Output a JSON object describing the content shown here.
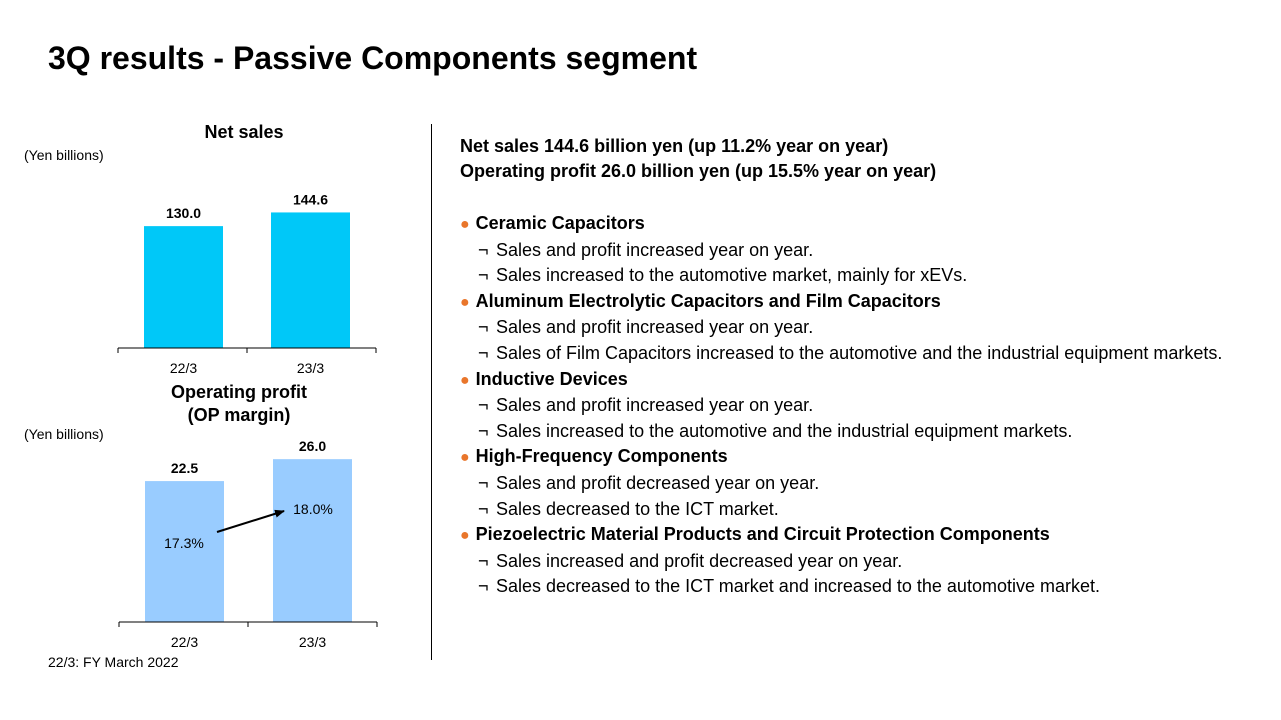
{
  "page": {
    "title": "3Q results - Passive Components segment"
  },
  "chart_data": [
    {
      "type": "bar",
      "title": "Net sales",
      "ylabel": "(Yen billions)",
      "categories": [
        "22/3",
        "23/3"
      ],
      "values": [
        130.0,
        144.6
      ],
      "value_labels": [
        "130.0",
        "144.6"
      ],
      "color": "#00c8f8",
      "ylim": [
        0,
        160
      ]
    },
    {
      "type": "bar",
      "title": "Operating profit",
      "subtitle": "(OP margin)",
      "ylabel": "(Yen billions)",
      "categories": [
        "22/3",
        "23/3"
      ],
      "values": [
        22.5,
        26.0
      ],
      "value_labels": [
        "22.5",
        "26.0"
      ],
      "op_margin_labels": [
        "17.3%",
        "18.0%"
      ],
      "op_margin": [
        17.3,
        18.0
      ],
      "color": "#99ccff",
      "ylim": [
        0,
        28.9
      ]
    }
  ],
  "footnote": "22/3: FY March 2022",
  "summary": [
    "Net sales  144.6 billion yen (up 11.2% year on year)",
    "Operating profit 26.0 billion yen (up 15.5% year on year)"
  ],
  "bullet_symbol": "●",
  "sub_symbol": "¬",
  "segments": [
    {
      "title": "Ceramic Capacitors",
      "items": [
        "Sales and profit increased year on year.",
        "Sales increased to the automotive market, mainly for xEVs."
      ]
    },
    {
      "title": "Aluminum Electrolytic Capacitors and Film Capacitors",
      "items": [
        "Sales and profit increased year on year.",
        "Sales of Film Capacitors increased to the automotive and the industrial equipment markets."
      ]
    },
    {
      "title": "Inductive Devices",
      "items": [
        "Sales and profit increased year on year.",
        "Sales increased to the automotive and the industrial equipment markets."
      ]
    },
    {
      "title": "High-Frequency Components",
      "items": [
        "Sales and profit decreased year on year.",
        "Sales decreased to the ICT market."
      ]
    },
    {
      "title": "Piezoelectric Material Products and Circuit Protection Components",
      "items": [
        "Sales increased and profit decreased year on year.",
        "Sales decreased to the ICT market and increased to the automotive market."
      ]
    }
  ],
  "colors": {
    "bullet": "#e9762b",
    "sales_bar": "#00c8f8",
    "op_bar": "#99ccff"
  }
}
